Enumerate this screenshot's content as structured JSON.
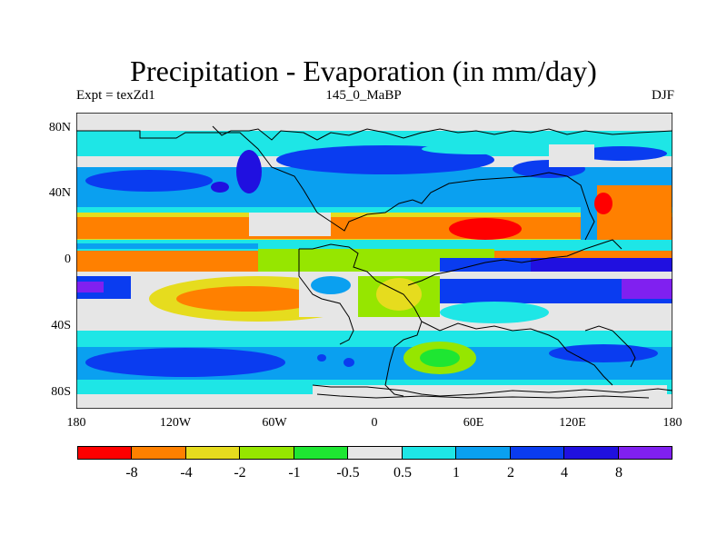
{
  "title": "Precipitation - Evaporation (in mm/day)",
  "subtitle_left": "Expt = texZd1",
  "subtitle_center": "145_0_MaBP",
  "subtitle_right": "DJF",
  "lat_ticks": [
    "80N",
    "40N",
    "0",
    "40S",
    "80S"
  ],
  "lon_ticks": [
    "180",
    "120W",
    "60W",
    "0",
    "60E",
    "120E",
    "180"
  ],
  "colorbar": {
    "labels": [
      "-8",
      "-4",
      "-2",
      "-1",
      "-0.5",
      "0.5",
      "1",
      "2",
      "4",
      "8"
    ],
    "colors": [
      "#ff0000",
      "#ff8000",
      "#e6dc1e",
      "#96e600",
      "#1ee632",
      "#e6e6e6",
      "#1ee6e6",
      "#0aa0f0",
      "#0a3cf0",
      "#2010e0",
      "#8020f0"
    ]
  }
}
